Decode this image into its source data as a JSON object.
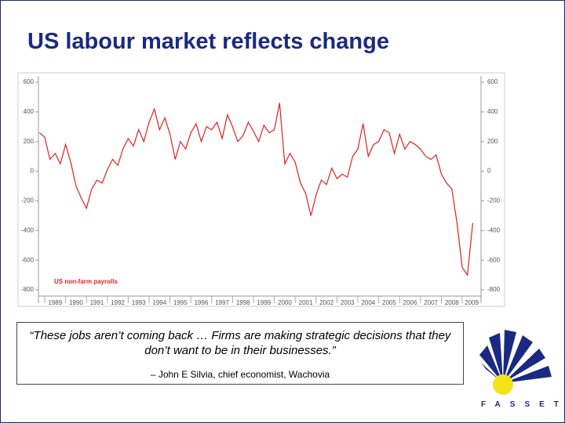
{
  "title": "US labour market reflects change",
  "chart_data": {
    "type": "line",
    "x": [
      1988.75,
      1989,
      1989.25,
      1989.5,
      1989.75,
      1990,
      1990.25,
      1990.5,
      1990.75,
      1991,
      1991.25,
      1991.5,
      1991.75,
      1992,
      1992.25,
      1992.5,
      1992.75,
      1993,
      1993.25,
      1993.5,
      1993.75,
      1994,
      1994.25,
      1994.5,
      1994.75,
      1995,
      1995.25,
      1995.5,
      1995.75,
      1996,
      1996.25,
      1996.5,
      1996.75,
      1997,
      1997.25,
      1997.5,
      1997.75,
      1998,
      1998.25,
      1998.5,
      1998.75,
      1999,
      1999.25,
      1999.5,
      1999.75,
      2000,
      2000.25,
      2000.5,
      2000.75,
      2001,
      2001.25,
      2001.5,
      2001.75,
      2002,
      2002.25,
      2002.5,
      2002.75,
      2003,
      2003.25,
      2003.5,
      2003.75,
      2004,
      2004.25,
      2004.5,
      2004.75,
      2005,
      2005.25,
      2005.5,
      2005.75,
      2006,
      2006.25,
      2006.5,
      2006.75,
      2007,
      2007.25,
      2007.5,
      2007.75,
      2008,
      2008.25,
      2008.5,
      2008.75,
      2009,
      2009.25,
      2009.5
    ],
    "series": [
      {
        "name": "US non-farm payrolls",
        "color": "#e02020",
        "values": [
          260,
          230,
          80,
          120,
          50,
          180,
          60,
          -100,
          -180,
          -250,
          -120,
          -60,
          -80,
          10,
          80,
          40,
          150,
          220,
          170,
          280,
          200,
          330,
          420,
          280,
          360,
          250,
          80,
          200,
          150,
          260,
          320,
          200,
          300,
          280,
          330,
          220,
          380,
          300,
          200,
          240,
          330,
          270,
          200,
          310,
          260,
          280,
          460,
          50,
          120,
          60,
          -80,
          -150,
          -300,
          -160,
          -60,
          -90,
          20,
          -50,
          -20,
          -40,
          100,
          150,
          320,
          100,
          180,
          200,
          280,
          260,
          120,
          250,
          150,
          200,
          180,
          150,
          100,
          80,
          110,
          -20,
          -80,
          -120,
          -350,
          -650,
          -700,
          -350
        ]
      }
    ],
    "xlim": [
      1988.7,
      2009.9
    ],
    "xticks": [
      1989,
      1990,
      1991,
      1992,
      1993,
      1994,
      1995,
      1996,
      1997,
      1998,
      1999,
      2000,
      2001,
      2002,
      2003,
      2004,
      2005,
      2006,
      2007,
      2008,
      2009
    ],
    "ylim": [
      -800,
      600
    ],
    "yticks": [
      600,
      400,
      200,
      0,
      -200,
      -400,
      -600,
      -800
    ],
    "y2lim": [
      -800,
      600
    ],
    "y2ticks": [
      600,
      400,
      200,
      0,
      -200,
      -400,
      -600,
      -800
    ]
  },
  "quote": {
    "text": "“These jobs aren’t coming back … Firms are making strategic decisions that they don’t want to be in their businesses.”",
    "attribution": "– John E Silvia, chief economist, Wachovia"
  },
  "logo": {
    "text": "FASSET"
  }
}
